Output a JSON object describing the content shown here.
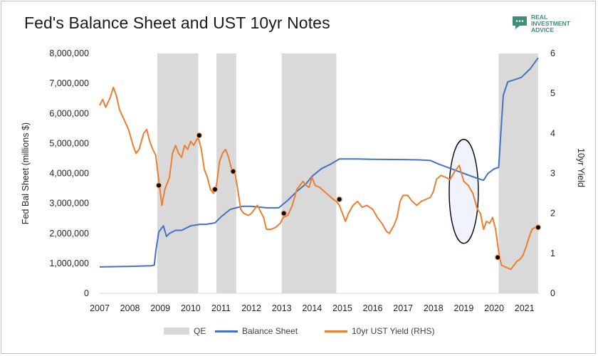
{
  "title": "Fed's Balance Sheet and UST 10yr Notes",
  "logo": {
    "line1": "REAL",
    "line2": "INVESTMENT",
    "line3": "ADVICE",
    "icon": "speech-bubble-icon",
    "color": "#3c8f78"
  },
  "colors": {
    "balance": "#4472c4",
    "yield": "#ed7d31",
    "qe": "#d9d9d9",
    "marker": "#000000"
  },
  "chart_data": {
    "type": "line",
    "title": "Fed's Balance Sheet and UST 10yr Notes",
    "ylabel": "Fed Bal Sheet (millions $)",
    "y2label": "10yr Yield",
    "xlim": [
      2007,
      2021.5
    ],
    "ylim": [
      0,
      8000000
    ],
    "y2lim": [
      0,
      6
    ],
    "x_ticks": [
      "2007",
      "2008",
      "2009",
      "2010",
      "2011",
      "2012",
      "2013",
      "2014",
      "2015",
      "2016",
      "2017",
      "2018",
      "2019",
      "2020",
      "2021"
    ],
    "y_ticks": [
      "0",
      "1,000,000",
      "2,000,000",
      "3,000,000",
      "4,000,000",
      "5,000,000",
      "6,000,000",
      "7,000,000",
      "8,000,000"
    ],
    "y2_ticks": [
      "0",
      "1",
      "2",
      "3",
      "4",
      "5",
      "6"
    ],
    "qe_periods": [
      [
        2008.9,
        2010.25
      ],
      [
        2010.85,
        2011.5
      ],
      [
        2013.0,
        2014.8
      ],
      [
        2020.15,
        2021.45
      ]
    ],
    "series": [
      {
        "name": "Balance Sheet",
        "axis": "left",
        "x": [
          2007.0,
          2008.0,
          2008.7,
          2008.8,
          2008.85,
          2008.95,
          2009.1,
          2009.2,
          2009.3,
          2009.5,
          2009.7,
          2010.0,
          2010.3,
          2010.5,
          2010.8,
          2011.0,
          2011.3,
          2011.5,
          2011.7,
          2012.0,
          2012.5,
          2012.9,
          2013.2,
          2013.5,
          2013.8,
          2014.0,
          2014.3,
          2014.6,
          2014.9,
          2015.5,
          2016.0,
          2017.0,
          2017.5,
          2017.9,
          2018.2,
          2018.6,
          2019.0,
          2019.4,
          2019.65,
          2019.8,
          2020.0,
          2020.15,
          2020.2,
          2020.3,
          2020.45,
          2020.6,
          2020.9,
          2021.2,
          2021.45
        ],
        "values": [
          880000,
          900000,
          920000,
          940000,
          1400000,
          2050000,
          2250000,
          1900000,
          2000000,
          2100000,
          2100000,
          2250000,
          2300000,
          2300000,
          2350000,
          2550000,
          2800000,
          2850000,
          2900000,
          2900000,
          2850000,
          2850000,
          3100000,
          3400000,
          3650000,
          3900000,
          4150000,
          4300000,
          4480000,
          4480000,
          4470000,
          4460000,
          4450000,
          4430000,
          4300000,
          4150000,
          4000000,
          3850000,
          3770000,
          4000000,
          4150000,
          4200000,
          5000000,
          6600000,
          7050000,
          7100000,
          7200000,
          7500000,
          7850000
        ]
      },
      {
        "name": "10yr UST Yield (RHS)",
        "axis": "right",
        "x": [
          2007.0,
          2007.1,
          2007.2,
          2007.35,
          2007.45,
          2007.55,
          2007.65,
          2007.8,
          2007.95,
          2008.1,
          2008.2,
          2008.3,
          2008.45,
          2008.55,
          2008.65,
          2008.75,
          2008.85,
          2008.92,
          2008.97,
          2009.05,
          2009.15,
          2009.3,
          2009.4,
          2009.5,
          2009.6,
          2009.7,
          2009.8,
          2009.9,
          2010.0,
          2010.1,
          2010.2,
          2010.25,
          2010.35,
          2010.45,
          2010.55,
          2010.65,
          2010.75,
          2010.85,
          2010.95,
          2011.05,
          2011.15,
          2011.25,
          2011.35,
          2011.45,
          2011.55,
          2011.65,
          2011.75,
          2011.9,
          2012.0,
          2012.2,
          2012.4,
          2012.5,
          2012.65,
          2012.8,
          2012.95,
          2013.05,
          2013.2,
          2013.35,
          2013.5,
          2013.6,
          2013.7,
          2013.8,
          2013.9,
          2014.0,
          2014.1,
          2014.25,
          2014.4,
          2014.55,
          2014.7,
          2014.8,
          2014.9,
          2015.0,
          2015.1,
          2015.2,
          2015.35,
          2015.5,
          2015.65,
          2015.8,
          2016.0,
          2016.15,
          2016.3,
          2016.45,
          2016.55,
          2016.7,
          2016.8,
          2016.9,
          2017.0,
          2017.15,
          2017.3,
          2017.45,
          2017.6,
          2017.75,
          2017.9,
          2018.0,
          2018.1,
          2018.25,
          2018.4,
          2018.55,
          2018.7,
          2018.85,
          2019.0,
          2019.15,
          2019.3,
          2019.45,
          2019.55,
          2019.65,
          2019.75,
          2019.85,
          2019.95,
          2020.05,
          2020.12,
          2020.18,
          2020.25,
          2020.4,
          2020.55,
          2020.65,
          2020.75,
          2020.85,
          2020.95,
          2021.05,
          2021.15,
          2021.25,
          2021.35,
          2021.45
        ],
        "values": [
          4.7,
          4.85,
          4.65,
          4.9,
          5.15,
          4.95,
          4.6,
          4.35,
          4.1,
          3.7,
          3.5,
          3.6,
          4.0,
          4.1,
          3.8,
          3.6,
          3.45,
          3.0,
          2.7,
          2.2,
          2.6,
          2.9,
          3.5,
          3.7,
          3.5,
          3.4,
          3.7,
          3.6,
          3.8,
          3.7,
          3.85,
          3.9,
          3.6,
          3.1,
          2.9,
          2.6,
          2.5,
          2.7,
          3.3,
          3.5,
          3.6,
          3.4,
          3.1,
          3.05,
          2.6,
          2.1,
          2.0,
          1.95,
          2.0,
          2.2,
          1.9,
          1.6,
          1.6,
          1.65,
          1.75,
          1.9,
          1.95,
          2.2,
          2.6,
          2.7,
          2.8,
          2.7,
          2.65,
          2.9,
          2.7,
          2.65,
          2.55,
          2.45,
          2.35,
          2.3,
          2.2,
          2.0,
          1.8,
          2.0,
          2.2,
          2.3,
          2.15,
          2.2,
          2.1,
          1.9,
          1.75,
          1.55,
          1.5,
          1.7,
          1.9,
          2.3,
          2.45,
          2.45,
          2.3,
          2.2,
          2.3,
          2.35,
          2.4,
          2.55,
          2.85,
          2.95,
          2.9,
          2.85,
          3.05,
          3.2,
          2.8,
          2.7,
          2.5,
          2.1,
          2.0,
          1.6,
          1.8,
          1.75,
          1.9,
          1.6,
          1.2,
          0.9,
          0.7,
          0.65,
          0.6,
          0.7,
          0.8,
          0.85,
          0.95,
          1.15,
          1.4,
          1.6,
          1.65,
          1.6
        ]
      }
    ],
    "markers": [
      {
        "x": 2008.95,
        "y": 2.7
      },
      {
        "x": 2010.28,
        "y": 3.95
      },
      {
        "x": 2010.8,
        "y": 2.6
      },
      {
        "x": 2011.4,
        "y": 3.05
      },
      {
        "x": 2013.07,
        "y": 2.0
      },
      {
        "x": 2014.9,
        "y": 2.35
      },
      {
        "x": 2020.12,
        "y": 0.9
      },
      {
        "x": 2021.45,
        "y": 1.65
      }
    ],
    "highlight_ellipse": {
      "cx": 2019.0,
      "cy": 2.55,
      "rx": 0.48,
      "ry": 1.3
    },
    "legend": [
      "QE",
      "Balance Sheet",
      "10yr UST Yield (RHS)"
    ],
    "legend_position": "bottom"
  }
}
